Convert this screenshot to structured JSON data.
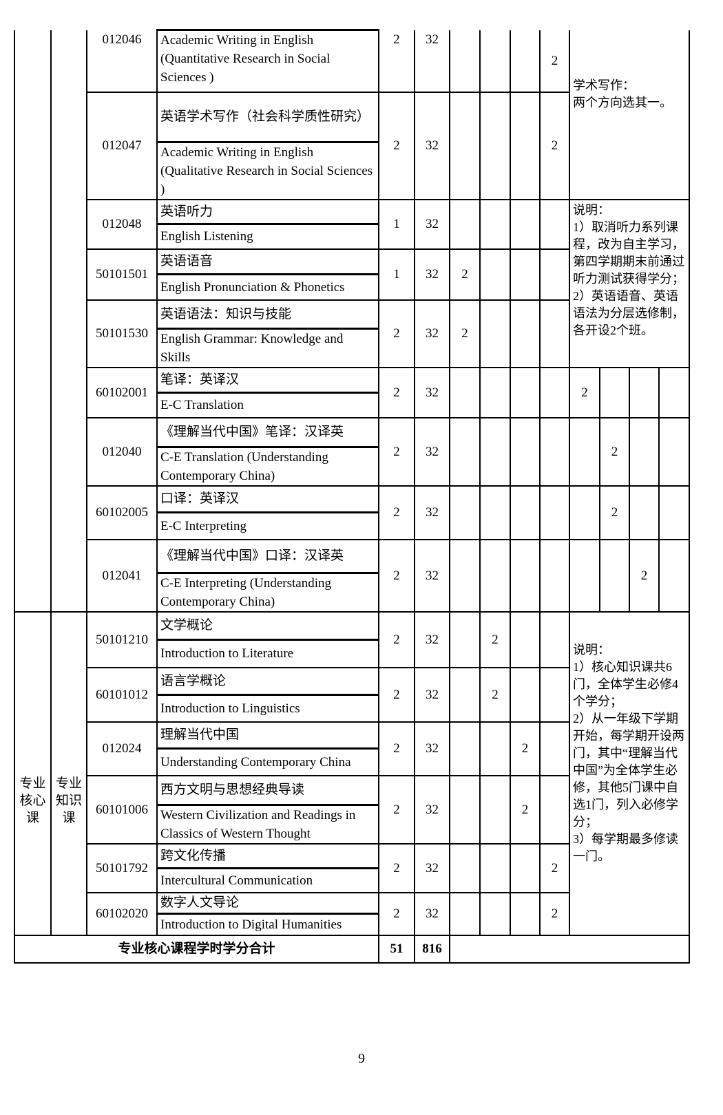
{
  "courses_top": [
    {
      "code": "012046",
      "zh": "",
      "en": "Academic Writing in English (Quantitative Research in Social Sciences )",
      "credits": "2",
      "hours": "32",
      "sem": 4
    },
    {
      "code": "012047",
      "zh": "英语学术写作（社会科学质性研究）",
      "en": "Academic Writing in English (Qualitative Research in Social Sciences )",
      "credits": "2",
      "hours": "32",
      "sem": 4
    },
    {
      "code": "012048",
      "zh": "英语听力",
      "en": "English Listening",
      "credits": "1",
      "hours": "32",
      "sem": 0
    },
    {
      "code": "50101501",
      "zh": "英语语音",
      "en": "English Pronunciation & Phonetics",
      "credits": "1",
      "hours": "32",
      "sem": 1
    },
    {
      "code": "50101530",
      "zh": "英语语法：知识与技能",
      "en": "English Grammar: Knowledge and Skills",
      "credits": "2",
      "hours": "32",
      "sem": 1
    },
    {
      "code": "60102001",
      "zh": "笔译：英译汉",
      "en": "E-C Translation",
      "credits": "2",
      "hours": "32",
      "sem": 5
    },
    {
      "code": "012040",
      "zh": "《理解当代中国》笔译：汉译英",
      "en": "C-E Translation (Understanding Contemporary China)",
      "credits": "2",
      "hours": "32",
      "sem": 6
    },
    {
      "code": "60102005",
      "zh": "口译：英译汉",
      "en": "E-C Interpreting",
      "credits": "2",
      "hours": "32",
      "sem": 6
    },
    {
      "code": "012041",
      "zh": "《理解当代中国》口译：汉译英",
      "en": "C-E Interpreting (Understanding Contemporary China)",
      "credits": "2",
      "hours": "32",
      "sem": 7
    }
  ],
  "courses_core": [
    {
      "code": "50101210",
      "zh": "文学概论",
      "en": "Introduction to Literature",
      "credits": "2",
      "hours": "32",
      "sem": 2
    },
    {
      "code": "60101012",
      "zh": "语言学概论",
      "en": "Introduction to Linguistics",
      "credits": "2",
      "hours": "32",
      "sem": 2
    },
    {
      "code": "012024",
      "zh": "理解当代中国",
      "en": "Understanding Contemporary China",
      "credits": "2",
      "hours": "32",
      "sem": 3
    },
    {
      "code": "60101006",
      "zh": "西方文明与思想经典导读",
      "en": "Western Civilization and Readings in Classics of Western Thought",
      "credits": "2",
      "hours": "32",
      "sem": 3
    },
    {
      "code": "50101792",
      "zh": "跨文化传播",
      "en": "Intercultural Communication",
      "credits": "2",
      "hours": "32",
      "sem": 4
    },
    {
      "code": "60102020",
      "zh": "数字人文导论",
      "en": "Introduction to Digital Humanities",
      "credits": "2",
      "hours": "32",
      "sem": 4
    }
  ],
  "semester_value": "2",
  "notes": {
    "writing": "学术写作：\n两个方向选其一。",
    "listening": "说明：\n1）取消听力系列课程，改为自主学习，第四学期期末前通过听力测试获得学分；\n2）英语语音、英语语法为分层选修制，各开设2个班。",
    "core": "说明：\n1）核心知识课共6门，全体学生必修4个学分；\n2）从一年级下学期开始，每学期开设两门，其中“理解当代中国”为全体学生必修，其他5门课中自选1门，列入必修学分；\n3）每学期最多修读一门。"
  },
  "category": {
    "main": "专业\n核心\n课",
    "sub": "专业\n知识\n课"
  },
  "total": {
    "label": "专业核心课程学时学分合计",
    "credits": "51",
    "hours": "816"
  },
  "page_number": "9"
}
